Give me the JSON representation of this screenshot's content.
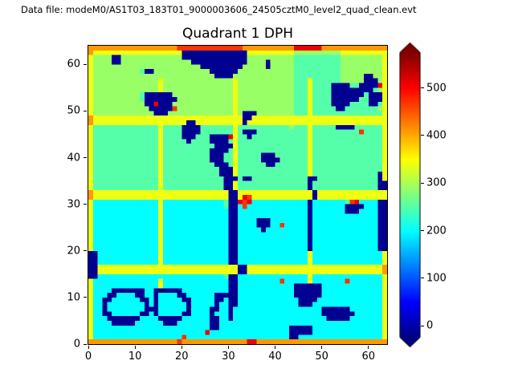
{
  "header": {
    "datafile_label": "Data file: modeM0/AS1T03_183T01_9000003606_24505cztM0_level2_quad_clean.evt"
  },
  "chart_data": {
    "type": "heatmap",
    "title": "Quadrant 1 DPH",
    "xlabel": "",
    "ylabel": "",
    "grid_size": 64,
    "x_range": [
      0,
      64
    ],
    "y_range": [
      0,
      64
    ],
    "x_ticks": [
      0,
      10,
      20,
      30,
      40,
      50,
      60
    ],
    "y_ticks": [
      0,
      10,
      20,
      30,
      40,
      50,
      60
    ],
    "colormap": "jet",
    "grid_on": false,
    "colorbar": {
      "position": "right",
      "ticks": [
        0,
        100,
        200,
        300,
        400,
        500
      ],
      "vmin": -25,
      "vmax": 575,
      "extend": "both"
    },
    "value_map": {
      "0": -15,
      "1": 80,
      "2": 150,
      "3": 200,
      "4": 250,
      "5": 290,
      "6": 340,
      "7": 410,
      "8": 470,
      "9": 510
    },
    "grid_rows_order": "top-to-bottom (first row is y=63, last row is y=0); each char maps to a count via value_map",
    "grid_rows": [
      "7777777777777777777888888888888887777777777799999977777777777777",
      "7666666666666666666600000000000000666666666655555555556666666666",
      "6555500555555555555500000000000000555555555544444444445555555556",
      "6555500555555555555555000000000000555505555544444444445555555556",
      "6555555555555555555555550000000005555505555544444444445555555556",
      "6555555555540055555555555500000055555555555544444444445555555556",
      "6555555555555555555555555550000555555555555544444444445555500556",
      "6555555555555556555555555555555655555555555544464444445555500056",
      "6555555555555556555555555555555655555555555544464444000044000096",
      "6555555555555556555555555555555655555555555544464444000000000456",
      "6555555555540000005555555555555655555555555544464444000000040006",
      "6555555555540000000555555555555655555555555544464444000000440006",
      "6555555555550090005555555555555655555555555544464444000044440046",
      "6555555555555000008555555555555655555555555544464444400444444456",
      "6555555555555500055555555555555650005555555544464444444444444446",
      "7666666666666666666666666666666660066666666666666666666666666666",
      "7666666666666666666660066666666660666666666666666666666666666666",
      "6444444444444446444400004444444644444444444544464444400004444446",
      "6444444444444446444400004444444640004444444444464444444444844446",
      "6444444444444446444400044400009644044444444444464444444444444446",
      "6444444444444446444440444400004644444444444444464444444444444446",
      "6444444444444446444444444440000644444444444444464444444444444446",
      "6444444444444446444444444400004644444444444444464444444444444446",
      "6444444444444446444444444400044644444000444444464444444444444446",
      "6444444444444446444444444400044644444000044444464444444444444446",
      "6444444444444446444444444440004644444400444444464444444444444446",
      "6444444444444446444444444444000644444444444444464444444444444446",
      "6444444444444446444444444444000644444444444444464444444444444406",
      "6444444444444446444444444444400040044444444444400444444444444406",
      "6444444444444446444444444444400644444444444444404444444444444400",
      "6444444444444446444444444444400644444444444444404444444444444400",
      "7666666666666666666666666666660066666666666666660666666666666666",
      "7666666666666666666666666666660069866666666666660666666666666666",
      "6333333333333336333333333333340098933333333333303333333489333300",
      "6333333333333336333333333333340038333333333333303333333000033300",
      "6333333333333336333333333333330033333333333333303333333000333300",
      "6333333333333336333333333333330033333333333333303333333333333300",
      "6333333333333336333333333333330033330003333333303333333333333300",
      "6333333333333336333333333333330033330003383333303333333333333300",
      "6333333333333336333333333333330033333033333333303333333333333300",
      "6333333333333336333333333333330033333333333333303333333333333300",
      "6333333333333336333333333333330033333333333333303333333333333300",
      "6333333333333336333333333333330033333333333333303333333333333300",
      "6333333333333336333333333333330033333333333333303333333333333300",
      "0033333333333336333333333333330033333333333333363333333333333336",
      "0033333333333336333333333333330033333333333333363333333333333336",
      "0033333333333336333333333333330033333333333333363333333333333336",
      "0066666666666666666666666666666600666666666666666666666666666667",
      "0066666666666666666666666666666600666666666666666666666666666667",
      "0033333333333333333333333333340033333333333333363333333333333336",
      "6333333333333336333333333333330033333333383333363333333833333336",
      "6333333333333336333333333333330033333333333300000033333333333336",
      "6333300000003300000033333333330033333333333300000033333333333336",
      "6333003333003303333003333330000033333333333300000033333333333336",
      "6330033333300303333300333330030033333333333330000333333333333336",
      "6330333333330303333330333330330033333333333330003333333333333336",
      "6330333333330003333330333300330333333333333333333300000033333336",
      "6330033333300303333300333303330333333333333333333300000003333336",
      "6333000000033330000033333300330333333333333333333330000033333336",
      "6333300000333333000333333300333333333333333333333333333333333336",
      "6333333333333333333333333300333333333333333000003333333333333336",
      "6333333333333333333333333933333333333333333000003333333333333336",
      "6333333333333333333383333333333333333333333003333333333333333336",
      "7777777777777777777877777777777777997777777777777777777777777777"
    ]
  }
}
